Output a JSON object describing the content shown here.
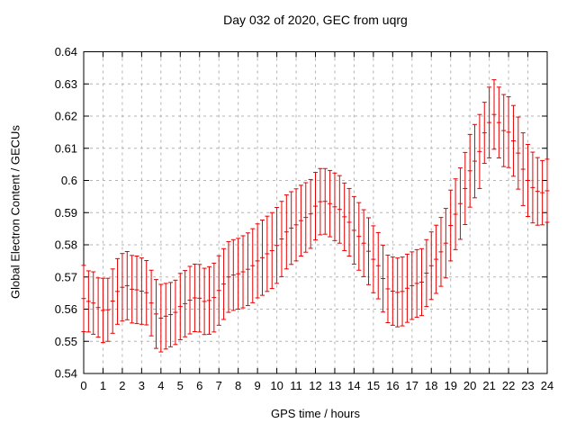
{
  "colors": {
    "background": "#ffffff",
    "axis": "#000000",
    "grid": "#b4b4b4",
    "series": "#e60000",
    "text": "#000000"
  },
  "chart_data": {
    "type": "scatter",
    "style": "points-with-yerrorbars",
    "title": "Day 032 of 2020, GEC from uqrg",
    "xlabel": "GPS time / hours",
    "ylabel": "Global Electron Content / GECUs",
    "xlim": [
      0,
      24
    ],
    "ylim": [
      0.54,
      0.64
    ],
    "grid": true,
    "legend": "none",
    "xticks": [
      0,
      1,
      2,
      3,
      4,
      5,
      6,
      7,
      8,
      9,
      10,
      11,
      12,
      13,
      14,
      15,
      16,
      17,
      18,
      19,
      20,
      21,
      22,
      23,
      24
    ],
    "ytick_labels": [
      "0.54",
      "0.55",
      "0.56",
      "0.57",
      "0.58",
      "0.59",
      "0.6",
      "0.61",
      "0.62",
      "0.63",
      "0.64"
    ],
    "ytick_values": [
      0.54,
      0.55,
      0.56,
      0.57,
      0.58,
      0.59,
      0.6,
      0.61,
      0.62,
      0.63,
      0.64
    ],
    "series_name": "GEC",
    "x": [
      0,
      0.25,
      0.5,
      0.75,
      1,
      1.25,
      1.5,
      1.75,
      2,
      2.25,
      2.5,
      2.75,
      3,
      3.25,
      3.5,
      3.75,
      4,
      4.25,
      4.5,
      4.75,
      5,
      5.25,
      5.5,
      5.75,
      6,
      6.25,
      6.5,
      6.75,
      7,
      7.25,
      7.5,
      7.75,
      8,
      8.25,
      8.5,
      8.75,
      9,
      9.25,
      9.5,
      9.75,
      10,
      10.25,
      10.5,
      10.75,
      11,
      11.25,
      11.5,
      11.75,
      12,
      12.25,
      12.5,
      12.75,
      13,
      13.25,
      13.5,
      13.75,
      14,
      14.25,
      14.5,
      14.75,
      15,
      15.25,
      15.5,
      15.75,
      16,
      16.25,
      16.5,
      16.75,
      17,
      17.25,
      17.5,
      17.75,
      18,
      18.25,
      18.5,
      18.75,
      19,
      19.25,
      19.5,
      19.75,
      20,
      20.25,
      20.5,
      20.75,
      21,
      21.25,
      21.5,
      21.75,
      22,
      22.25,
      22.5,
      22.75,
      23,
      23.25,
      23.5,
      23.75,
      24
    ],
    "y": [
      0.5633,
      0.5624,
      0.5619,
      0.5605,
      0.5596,
      0.5598,
      0.5625,
      0.5655,
      0.5668,
      0.5673,
      0.5662,
      0.566,
      0.5656,
      0.5651,
      0.5619,
      0.5585,
      0.5572,
      0.5578,
      0.5583,
      0.559,
      0.5608,
      0.5617,
      0.5628,
      0.5635,
      0.5634,
      0.5624,
      0.5627,
      0.5636,
      0.5658,
      0.5678,
      0.57,
      0.5706,
      0.571,
      0.5716,
      0.5724,
      0.5735,
      0.575,
      0.576,
      0.5772,
      0.5782,
      0.5798,
      0.5818,
      0.584,
      0.5852,
      0.5862,
      0.5875,
      0.5885,
      0.5896,
      0.592,
      0.5934,
      0.5935,
      0.5928,
      0.5918,
      0.591,
      0.5887,
      0.587,
      0.5845,
      0.5826,
      0.5805,
      0.578,
      0.5755,
      0.5735,
      0.5695,
      0.5663,
      0.5656,
      0.5652,
      0.5655,
      0.5665,
      0.5673,
      0.568,
      0.5684,
      0.5712,
      0.5735,
      0.5755,
      0.5778,
      0.5805,
      0.586,
      0.5895,
      0.5928,
      0.5975,
      0.603,
      0.606,
      0.609,
      0.6148,
      0.618,
      0.6205,
      0.618,
      0.6155,
      0.615,
      0.6123,
      0.6085,
      0.6035,
      0.6,
      0.5978,
      0.5966,
      0.5962,
      0.5968
    ],
    "yerr": [
      0.0103,
      0.0095,
      0.0097,
      0.0092,
      0.01,
      0.0098,
      0.01,
      0.0102,
      0.0105,
      0.0106,
      0.0105,
      0.0105,
      0.0103,
      0.01,
      0.0102,
      0.0107,
      0.0105,
      0.0102,
      0.01,
      0.01,
      0.0103,
      0.0103,
      0.0105,
      0.0105,
      0.0105,
      0.0103,
      0.0105,
      0.0107,
      0.0108,
      0.011,
      0.011,
      0.011,
      0.011,
      0.0112,
      0.0113,
      0.0115,
      0.0115,
      0.0117,
      0.0117,
      0.0118,
      0.0118,
      0.0117,
      0.0115,
      0.0113,
      0.0112,
      0.011,
      0.0108,
      0.0107,
      0.0105,
      0.0103,
      0.0102,
      0.0103,
      0.0105,
      0.0105,
      0.0105,
      0.0105,
      0.0105,
      0.0105,
      0.0104,
      0.0104,
      0.0104,
      0.0103,
      0.0104,
      0.0105,
      0.0106,
      0.0107,
      0.0107,
      0.0106,
      0.0105,
      0.0105,
      0.0104,
      0.0104,
      0.0105,
      0.0106,
      0.0107,
      0.0108,
      0.011,
      0.011,
      0.0111,
      0.0112,
      0.0113,
      0.0114,
      0.0115,
      0.0095,
      0.011,
      0.0108,
      0.011,
      0.0112,
      0.011,
      0.011,
      0.0112,
      0.0113,
      0.0112,
      0.011,
      0.0105,
      0.01,
      0.0098
    ]
  }
}
